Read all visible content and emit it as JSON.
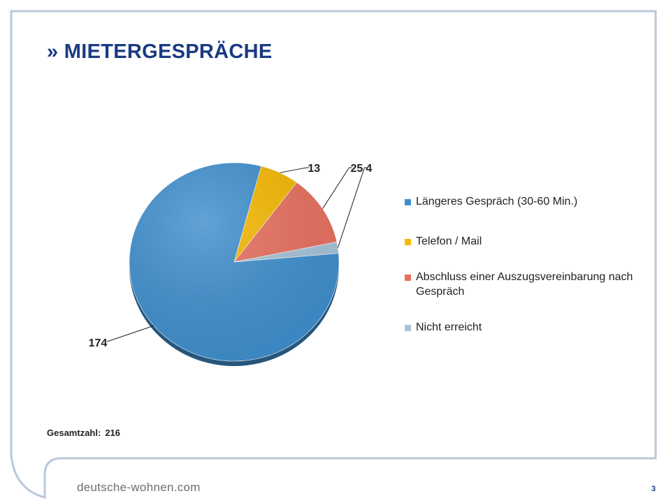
{
  "slide": {
    "title": "» MIETERGESPRÄCHE",
    "total_label": "Gesamtzahl:",
    "total_value": "216",
    "footer_brand": "deutsche-wohnen.com",
    "page_number": "3"
  },
  "colors": {
    "frame": "#b9c8da",
    "title": "#1a3a82"
  },
  "chart_data": {
    "type": "pie",
    "style": "3d",
    "legend_position": "right",
    "slices": [
      {
        "label": "Längeres Gespräch (30-60 Min.)",
        "value": 174,
        "color": "#3f8fce"
      },
      {
        "label": "Telefon / Mail",
        "value": 13,
        "color": "#f5b800"
      },
      {
        "label": "Abschluss einer Auszugsvereinbarung nach Gespräch",
        "value": 25,
        "color": "#e8705e"
      },
      {
        "label": "Nicht erreicht",
        "value": 4,
        "color": "#a6c4d8"
      }
    ]
  }
}
